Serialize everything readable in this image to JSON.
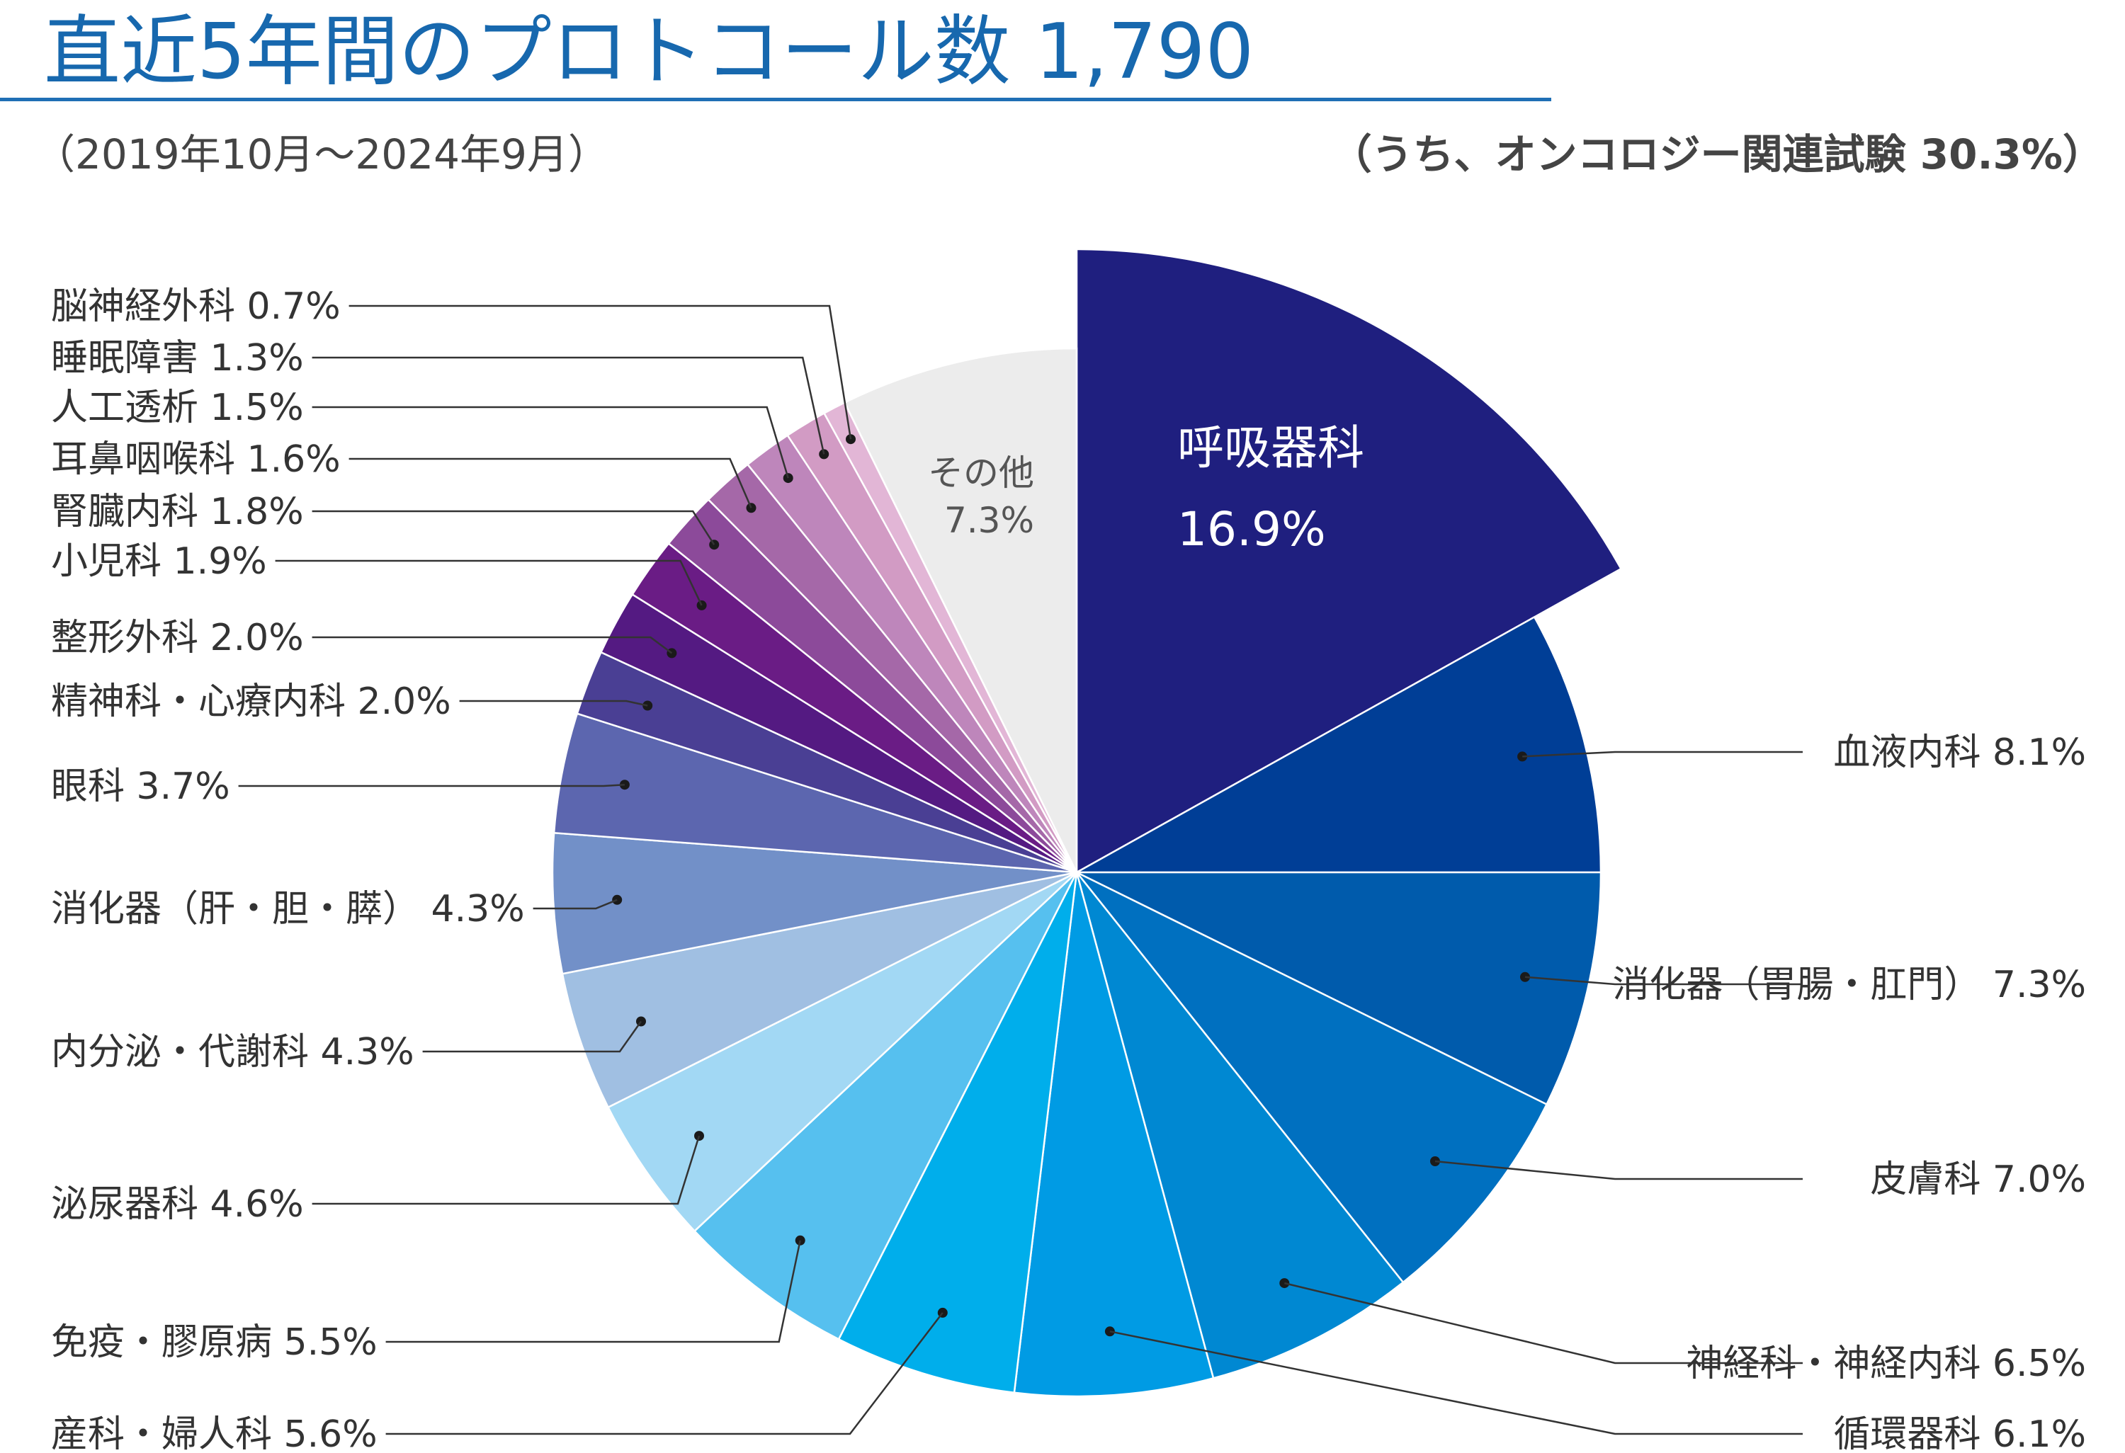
{
  "header": {
    "title": "直近5年間のプロトコール数 1,790",
    "subtitle": "（2019年10月～2024年9月）",
    "note": "（うち、オンコロジー関連試験 30.3%）"
  },
  "chart_data": {
    "type": "pie",
    "title": "直近5年間のプロトコール数 1,790",
    "unit": "%",
    "slices": [
      {
        "label": "呼吸器科",
        "value": 16.9,
        "color": "#1f1f7f"
      },
      {
        "label": "血液内科",
        "value": 8.1,
        "color": "#003e96"
      },
      {
        "label": "消化器（胃腸・肛門）",
        "value": 7.3,
        "color": "#005bac"
      },
      {
        "label": "皮膚科",
        "value": 7.0,
        "color": "#0070c0"
      },
      {
        "label": "神経科・神経内科",
        "value": 6.5,
        "color": "#0088d2"
      },
      {
        "label": "循環器科",
        "value": 6.1,
        "color": "#009be4"
      },
      {
        "label": "産科・婦人科",
        "value": 5.6,
        "color": "#00aeeb"
      },
      {
        "label": "免疫・膠原病",
        "value": 5.5,
        "color": "#56c0ef"
      },
      {
        "label": "泌尿器科",
        "value": 4.6,
        "color": "#a2d8f4"
      },
      {
        "label": "内分泌・代謝科",
        "value": 4.3,
        "color": "#a0bfe2"
      },
      {
        "label": "消化器（肝・胆・膵）",
        "value": 4.3,
        "color": "#7290c8"
      },
      {
        "label": "眼科",
        "value": 3.7,
        "color": "#5c66af"
      },
      {
        "label": "精神科・心療内科",
        "value": 2.0,
        "color": "#4a3f94"
      },
      {
        "label": "整形外科",
        "value": 2.0,
        "color": "#541a82"
      },
      {
        "label": "小児科",
        "value": 1.9,
        "color": "#6a1c85"
      },
      {
        "label": "腎臓内科",
        "value": 1.8,
        "color": "#8c4a9a"
      },
      {
        "label": "耳鼻咽喉科",
        "value": 1.6,
        "color": "#a568a8"
      },
      {
        "label": "人工透析",
        "value": 1.5,
        "color": "#be86bb"
      },
      {
        "label": "睡眠障害",
        "value": 1.3,
        "color": "#d29bc4"
      },
      {
        "label": "脳神経外科",
        "value": 0.7,
        "color": "#e2b6d6"
      },
      {
        "label": "その他",
        "value": 7.3,
        "color": "#ececec"
      }
    ],
    "exploded_slice": "呼吸器科",
    "inside_label_slices": [
      "呼吸器科",
      "その他"
    ]
  }
}
